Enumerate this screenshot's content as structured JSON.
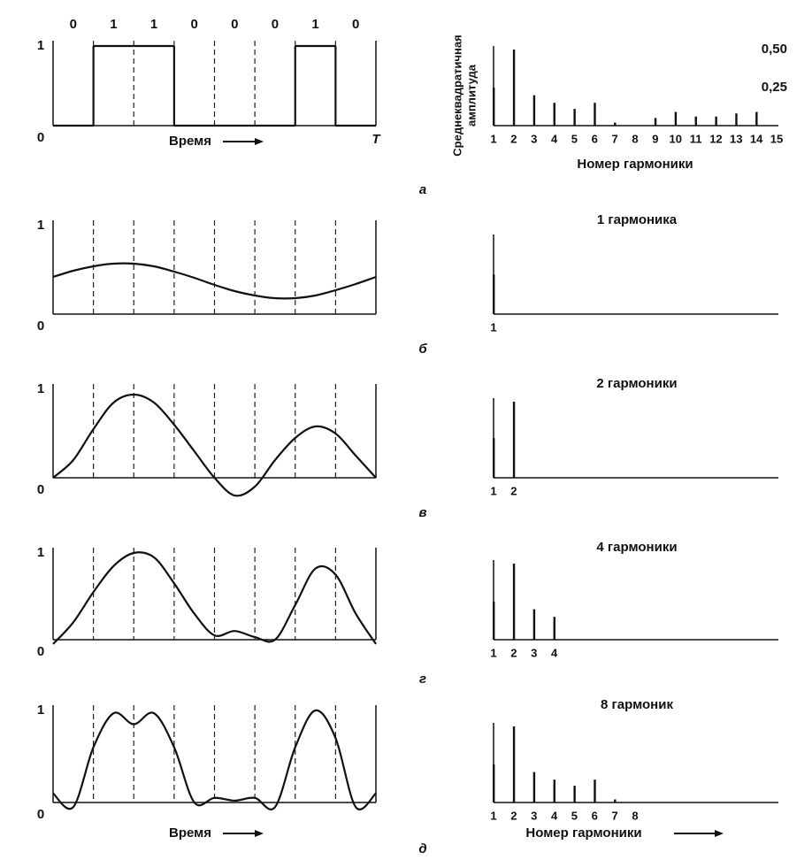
{
  "chart_data": [
    {
      "type": "step",
      "panel": "а",
      "xlabel": "Время",
      "values": [
        0,
        1,
        1,
        0,
        0,
        0,
        1,
        0
      ],
      "xlim": [
        0,
        8
      ],
      "ylim": [
        0,
        1
      ],
      "yticks": [
        0,
        1
      ],
      "xticks": [
        {
          "value": 8,
          "label": "T"
        }
      ]
    },
    {
      "type": "bar",
      "ylabel": [
        "Среднеквадратичная",
        "амплитуда"
      ],
      "xlabel": "Номер гармоники",
      "categories": [
        "1",
        "2",
        "3",
        "4",
        "5",
        "6",
        "7",
        "8",
        "9",
        "10",
        "11",
        "12",
        "13",
        "14",
        "15"
      ],
      "values": [
        0.25,
        0.5,
        0.2,
        0.15,
        0.11,
        0.15,
        0.02,
        0,
        0.05,
        0.09,
        0.06,
        0.06,
        0.08,
        0.09,
        0
      ],
      "ylim": [
        0,
        0.5
      ],
      "yticks": [
        {
          "value": 0.5,
          "label": "0,50"
        },
        {
          "value": 0.25,
          "label": "0,25"
        }
      ]
    },
    {
      "type": "line",
      "panel": "б",
      "x": [
        0,
        0.5,
        1,
        1.5,
        2,
        2.5,
        3,
        3.5,
        4,
        4.5,
        5,
        5.5,
        6,
        6.5,
        7,
        7.5,
        8
      ],
      "values": [
        0.42,
        0.49,
        0.54,
        0.57,
        0.57,
        0.54,
        0.48,
        0.41,
        0.33,
        0.26,
        0.21,
        0.18,
        0.18,
        0.21,
        0.27,
        0.34,
        0.42
      ],
      "xlim": [
        0,
        8
      ],
      "ylim": [
        0,
        1
      ],
      "yticks": [
        0,
        1
      ]
    },
    {
      "type": "bar",
      "title": "1 гармоника",
      "categories": [
        "1"
      ],
      "values": [
        0.26
      ],
      "ylim": [
        0,
        0.5
      ]
    },
    {
      "type": "line",
      "panel": "в",
      "x": [
        0,
        0.5,
        1,
        1.5,
        2,
        2.5,
        3,
        3.5,
        4,
        4.5,
        5,
        5.5,
        6,
        6.5,
        7,
        7.5,
        8
      ],
      "values": [
        0,
        0.2,
        0.55,
        0.85,
        0.94,
        0.85,
        0.6,
        0.3,
        0,
        -0.2,
        -0.1,
        0.2,
        0.45,
        0.58,
        0.5,
        0.25,
        0
      ],
      "xlim": [
        0,
        8
      ],
      "ylim": [
        0,
        1
      ],
      "yticks": [
        0,
        1
      ]
    },
    {
      "type": "bar",
      "title": "2 гармоники",
      "categories": [
        "1",
        "2"
      ],
      "values": [
        0.26,
        0.5
      ],
      "ylim": [
        0,
        0.5
      ]
    },
    {
      "type": "line",
      "panel": "г",
      "x": [
        0,
        0.5,
        1,
        1.5,
        2,
        2.5,
        3,
        3.5,
        4,
        4.5,
        5,
        5.5,
        6,
        6.5,
        7,
        7.5,
        8
      ],
      "values": [
        -0.05,
        0.2,
        0.55,
        0.85,
        1,
        0.95,
        0.65,
        0.3,
        0.05,
        0.1,
        0.03,
        0,
        0.4,
        0.82,
        0.75,
        0.3,
        -0.05
      ],
      "xlim": [
        0,
        8
      ],
      "ylim": [
        0,
        1
      ],
      "yticks": [
        0,
        1
      ]
    },
    {
      "type": "bar",
      "title": "4 гармоники",
      "categories": [
        "1",
        "2",
        "3",
        "4"
      ],
      "values": [
        0.25,
        0.5,
        0.2,
        0.15
      ],
      "ylim": [
        0,
        0.5
      ]
    },
    {
      "type": "line",
      "panel": "д",
      "xlabel": "Время",
      "x": [
        0,
        0.5,
        1,
        1.5,
        2,
        2.5,
        3,
        3.5,
        4,
        4.5,
        5,
        5.5,
        6,
        6.5,
        7,
        7.5,
        8
      ],
      "values": [
        0.1,
        -0.05,
        0.6,
        0.97,
        0.85,
        0.97,
        0.6,
        0,
        0.05,
        0.02,
        0.05,
        -0.05,
        0.6,
        1,
        0.7,
        -0.05,
        0.1
      ],
      "xlim": [
        0,
        8
      ],
      "ylim": [
        0,
        1
      ],
      "yticks": [
        0,
        1
      ]
    },
    {
      "type": "bar",
      "title": "8 гармоник",
      "xlabel": "Номер гармоники",
      "categories": [
        "1",
        "2",
        "3",
        "4",
        "5",
        "6",
        "7",
        "8"
      ],
      "values": [
        0.25,
        0.5,
        0.2,
        0.15,
        0.11,
        0.15,
        0.02,
        0
      ],
      "ylim": [
        0,
        0.5
      ]
    }
  ]
}
